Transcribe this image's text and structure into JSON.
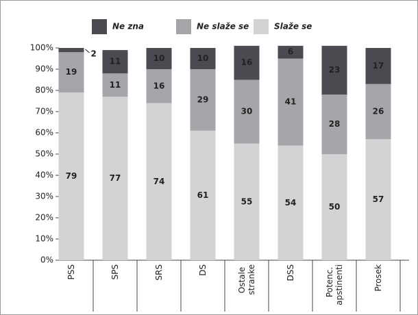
{
  "chart_data": {
    "type": "stacked_bar",
    "categories": [
      "PSS",
      "SPS",
      "SRS",
      "DS",
      "Ostale stranke",
      "DSS",
      "Potenc. apstinenti",
      "Prosek"
    ],
    "series": [
      {
        "name": "Slaže se",
        "color": "#d1d3d5",
        "values": [
          79,
          77,
          74,
          61,
          55,
          54,
          50,
          57
        ]
      },
      {
        "name": "Ne slaže se",
        "color": "#a4a6a9",
        "values": [
          19,
          11,
          16,
          29,
          30,
          41,
          28,
          26
        ]
      },
      {
        "name": "Ne zna",
        "color": "#4b4a50",
        "values": [
          2,
          11,
          10,
          10,
          16,
          6,
          23,
          17
        ]
      }
    ],
    "ylim": [
      0,
      100
    ],
    "yticks": [
      {
        "value": 0,
        "label": "0%"
      },
      {
        "value": 10,
        "label": "10%"
      },
      {
        "value": 20,
        "label": "20%"
      },
      {
        "value": 30,
        "label": "30%"
      },
      {
        "value": 40,
        "label": "40%"
      },
      {
        "value": 50,
        "label": "50%"
      },
      {
        "value": 60,
        "label": "60%"
      },
      {
        "value": 70,
        "label": "70%"
      },
      {
        "value": 80,
        "label": "80%"
      },
      {
        "value": 90,
        "label": "90%"
      },
      {
        "value": 100,
        "label": "100%"
      }
    ],
    "grid": false,
    "legend": "top"
  }
}
